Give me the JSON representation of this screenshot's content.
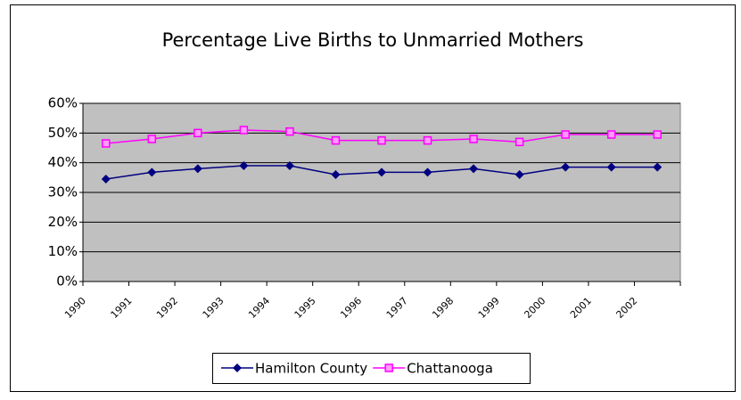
{
  "chart_data": {
    "type": "line",
    "title": "Percentage Live Births to Unmarried Mothers",
    "categories": [
      "1990",
      "1991",
      "1992",
      "1993",
      "1994",
      "1995",
      "1996",
      "1997",
      "1998",
      "1999",
      "2000",
      "2001",
      "2002"
    ],
    "series": [
      {
        "name": "Hamilton County",
        "color": "#000080",
        "marker": "diamond",
        "values": [
          34.5,
          36.8,
          38,
          39,
          39,
          36,
          36.8,
          36.8,
          38,
          36,
          38.5,
          38.5,
          38.5
        ]
      },
      {
        "name": "Chattanooga",
        "color": "#ff00ff",
        "marker": "square",
        "values": [
          46.5,
          48,
          50,
          51,
          50.5,
          47.5,
          47.5,
          47.5,
          48,
          47,
          49.5,
          49.5,
          49.5
        ]
      }
    ],
    "ylim": [
      0,
      60
    ],
    "yticks": [
      {
        "value": 0,
        "label": "0%"
      },
      {
        "value": 10,
        "label": "10%"
      },
      {
        "value": 20,
        "label": "20%"
      },
      {
        "value": 30,
        "label": "30%"
      },
      {
        "value": 40,
        "label": "40%"
      },
      {
        "value": 50,
        "label": "50%"
      },
      {
        "value": 60,
        "label": "60%"
      }
    ],
    "grid": true,
    "legend": "bottom",
    "plot_background": "#c0c0c0"
  }
}
